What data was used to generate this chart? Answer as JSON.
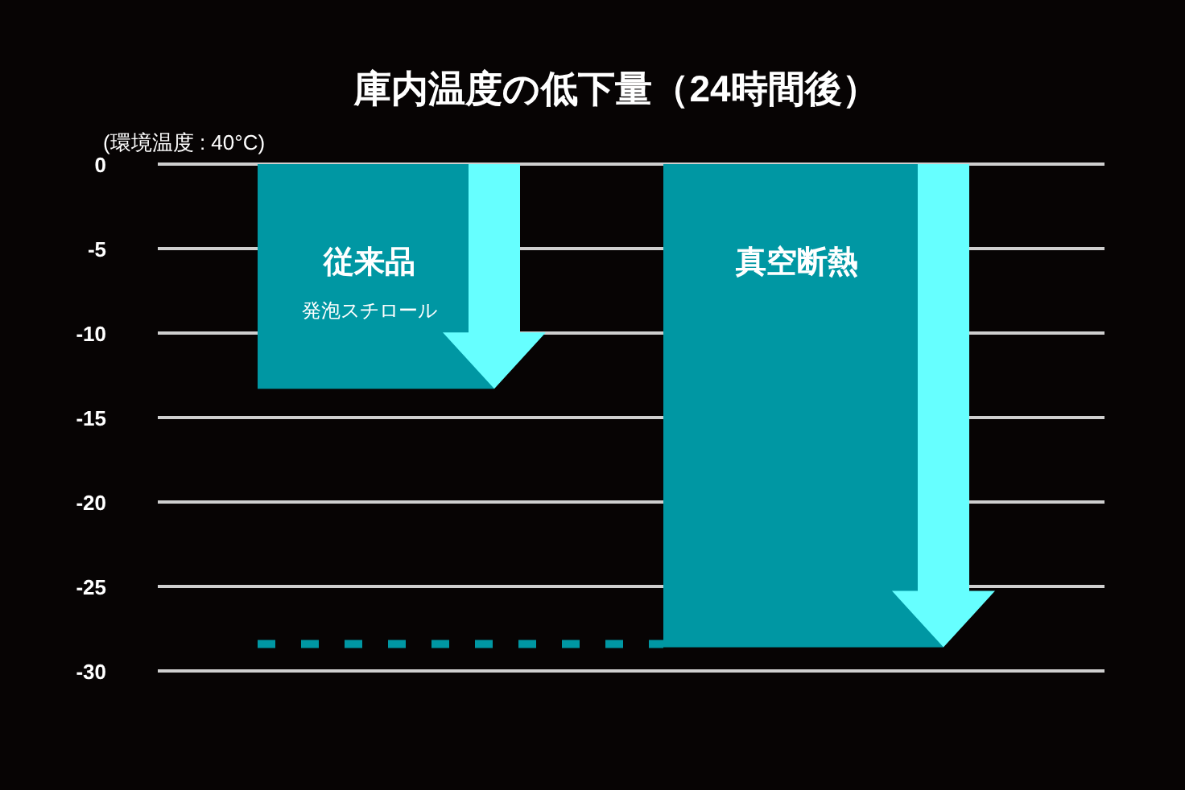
{
  "chart_data": {
    "type": "bar",
    "title": "庫内温度の低下量（24時間後）",
    "subtitle": "(環境温度 : 40°C)",
    "categories": [
      "従来品",
      "真空断熱"
    ],
    "values": [
      -13.3,
      -28.6
    ],
    "color": "#0097a3",
    "ylim": [
      -30,
      0
    ],
    "yticks": [
      -30,
      -25,
      -20,
      -15,
      -10,
      -5,
      0
    ],
    "grid": "y",
    "ref_lines": [
      {
        "axis": "y",
        "value": -28.4,
        "color": "#0097a3",
        "line_style": "dashed"
      }
    ],
    "annotations": [
      "発泡スチロール"
    ]
  }
}
